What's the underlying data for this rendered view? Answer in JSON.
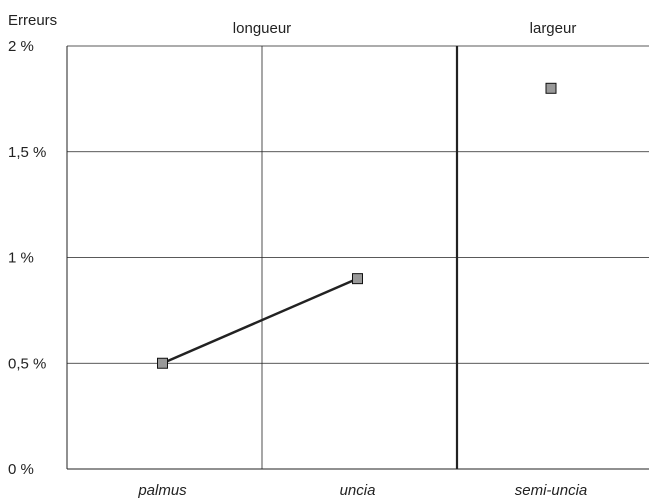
{
  "chart_data": {
    "type": "line",
    "ylabel": "Erreurs",
    "ylim": [
      0,
      2
    ],
    "y_ticks": [
      {
        "value": 0,
        "label": "0 %"
      },
      {
        "value": 0.5,
        "label": "0,5 %"
      },
      {
        "value": 1,
        "label": "1 %"
      },
      {
        "value": 1.5,
        "label": "1,5 %"
      },
      {
        "value": 2,
        "label": "2 %"
      }
    ],
    "categories": [
      "palmus",
      "uncia",
      "semi-uncia"
    ],
    "groups": [
      {
        "label": "longueur",
        "categories": [
          "palmus",
          "uncia"
        ]
      },
      {
        "label": "largeur",
        "categories": [
          "semi-uncia"
        ]
      }
    ],
    "series": [
      {
        "values": [
          0.5,
          0.9,
          null
        ],
        "connected": true
      },
      {
        "values": [
          null,
          null,
          1.8
        ],
        "connected": false
      }
    ],
    "grid": true,
    "colors": {
      "marker_fill": "#999999",
      "line": "#222222",
      "grid": "#222222"
    }
  }
}
